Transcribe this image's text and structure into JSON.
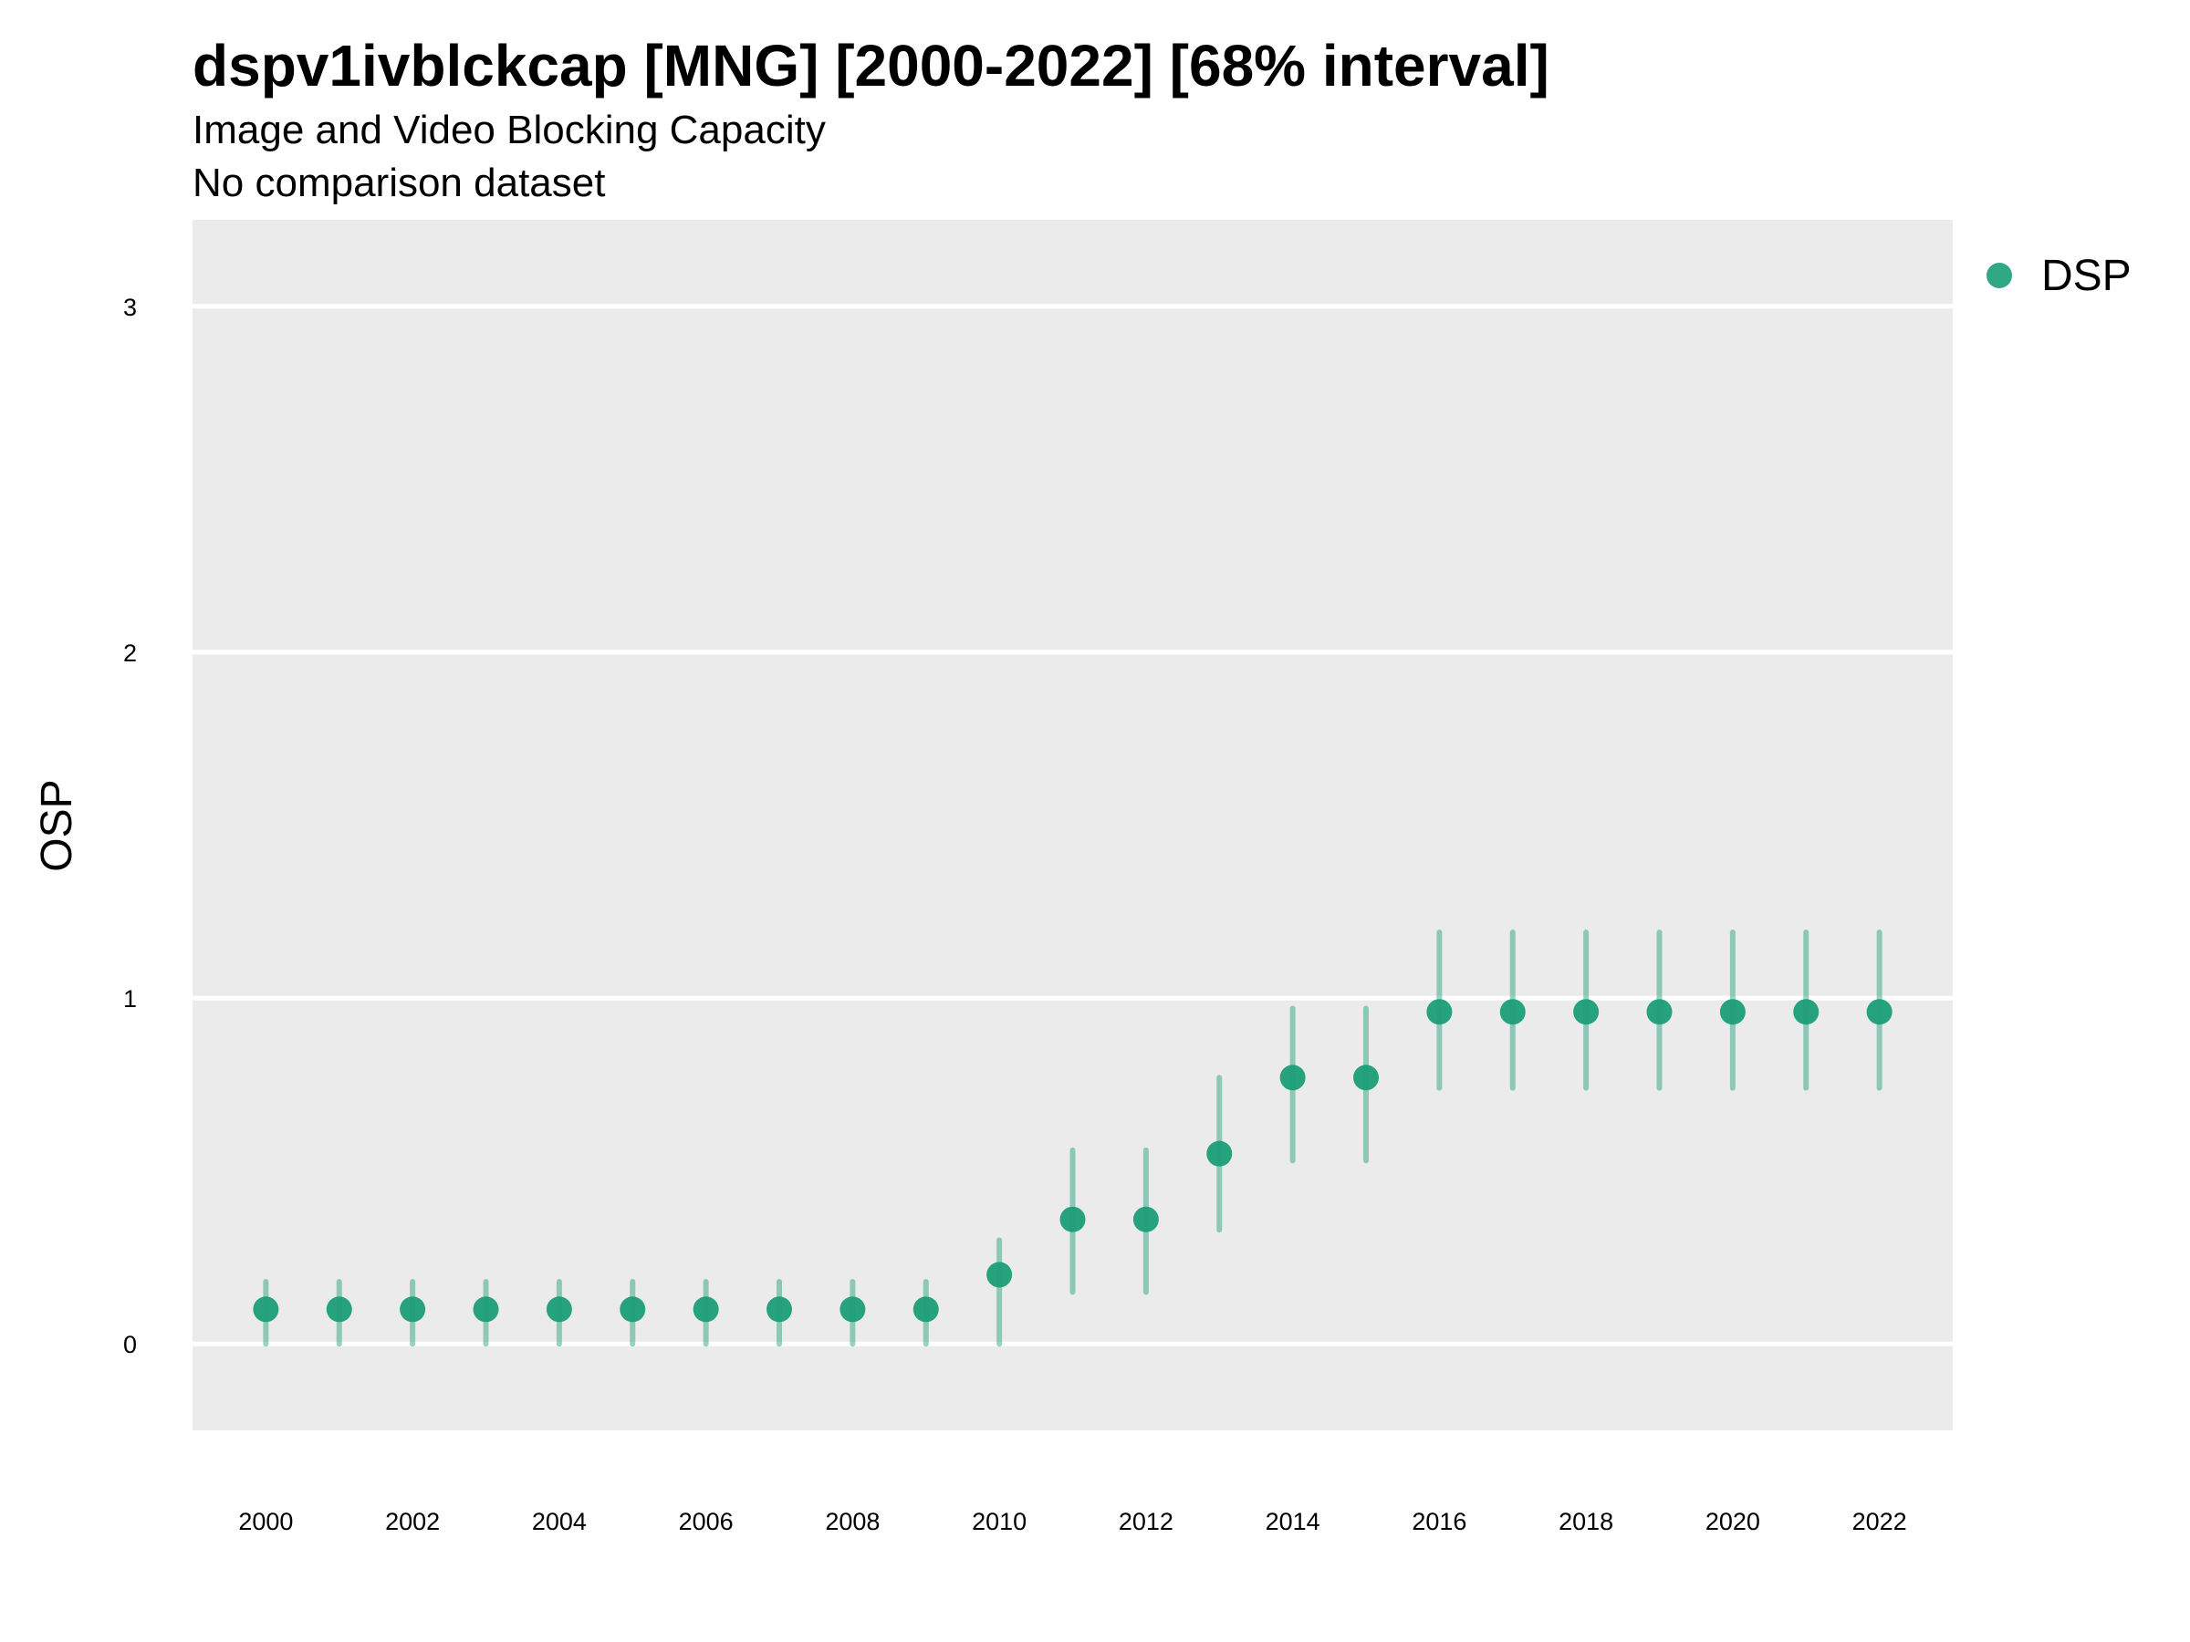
{
  "chart_data": {
    "type": "scatter",
    "title": "dspv1ivblckcap [MNG] [2000-2022] [68% interval]",
    "subtitle": "Image and Video Blocking Capacity",
    "caption": "No comparison dataset",
    "ylabel": "OSP",
    "xlabel": "",
    "xlim": [
      1999,
      2023
    ],
    "ylim": [
      -0.25,
      3.25
    ],
    "x_ticks": [
      2000,
      2002,
      2004,
      2006,
      2008,
      2010,
      2012,
      2014,
      2016,
      2018,
      2020,
      2022
    ],
    "y_ticks": [
      0,
      1,
      2,
      3
    ],
    "grid": true,
    "legend_position": "top-right",
    "series": [
      {
        "name": "DSP",
        "color": "#1b9e77",
        "x": [
          2000,
          2001,
          2002,
          2003,
          2004,
          2005,
          2006,
          2007,
          2008,
          2009,
          2010,
          2011,
          2012,
          2013,
          2014,
          2015,
          2016,
          2017,
          2018,
          2019,
          2020,
          2021,
          2022
        ],
        "y": [
          0.1,
          0.1,
          0.1,
          0.1,
          0.1,
          0.1,
          0.1,
          0.1,
          0.1,
          0.1,
          0.2,
          0.36,
          0.36,
          0.55,
          0.77,
          0.77,
          0.96,
          0.96,
          0.96,
          0.96,
          0.96,
          0.96,
          0.96
        ],
        "lower": [
          0.0,
          0.0,
          0.0,
          0.0,
          0.0,
          0.0,
          0.0,
          0.0,
          0.0,
          0.0,
          0.0,
          0.15,
          0.15,
          0.33,
          0.53,
          0.53,
          0.74,
          0.74,
          0.74,
          0.74,
          0.74,
          0.74,
          0.74
        ],
        "upper": [
          0.18,
          0.18,
          0.18,
          0.18,
          0.18,
          0.18,
          0.18,
          0.18,
          0.18,
          0.18,
          0.3,
          0.56,
          0.56,
          0.77,
          0.97,
          0.97,
          1.19,
          1.19,
          1.19,
          1.19,
          1.19,
          1.19,
          1.19
        ]
      }
    ]
  }
}
